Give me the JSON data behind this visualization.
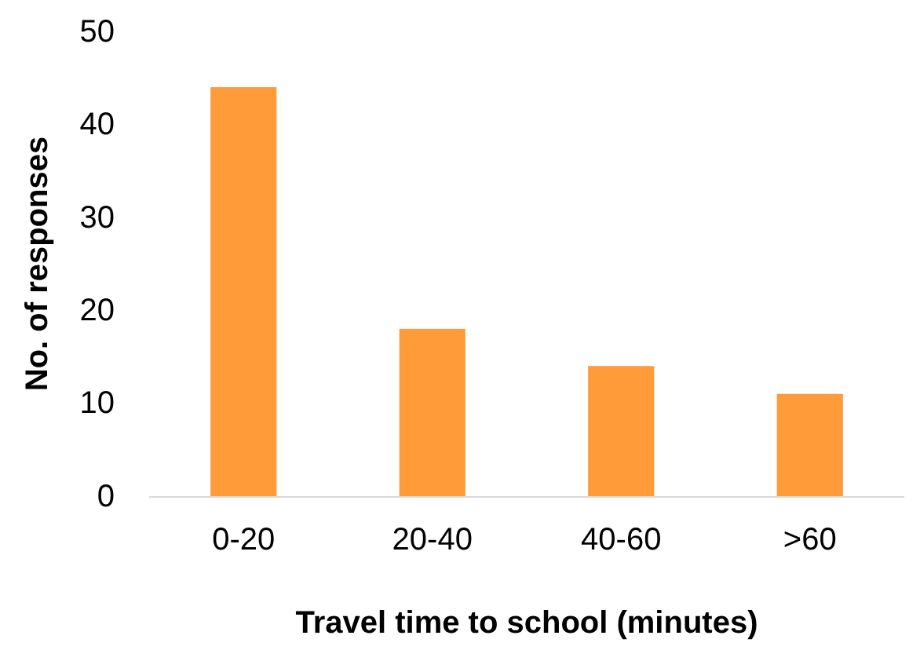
{
  "chart_data": {
    "type": "bar",
    "categories": [
      "0-20",
      "20-40",
      "40-60",
      ">60"
    ],
    "values": [
      44,
      18,
      14,
      11
    ],
    "color": "#ff9c39",
    "xlabel": "Travel time to school (minutes)",
    "ylabel": "No. of responses",
    "ylim": [
      0,
      50
    ],
    "yticks": [
      0,
      10,
      20,
      30,
      40,
      50
    ]
  }
}
